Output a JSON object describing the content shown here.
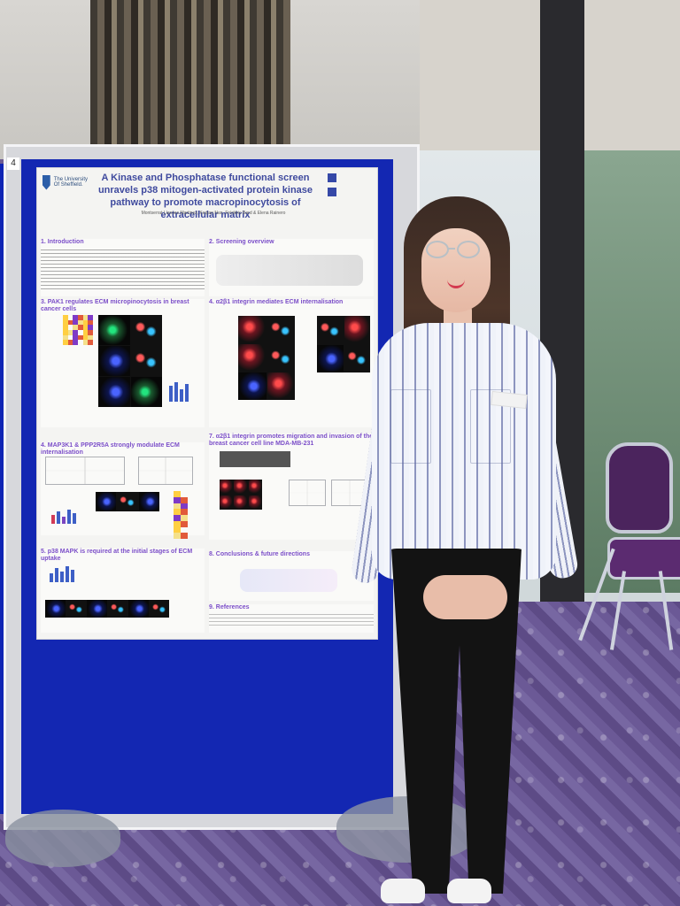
{
  "poster": {
    "board_number": "4",
    "title": "A Kinase and Phosphatase functional screen unravels p38 mitogen-activated protein kinase pathway to promote macropinocytosis of extracellular matrix",
    "university": "The University Of Sheffield.",
    "authors": "Montserrat Llanses Martinez, Keqian Nan, Frédéric Bard & Elena Rainero",
    "sections": {
      "s1": "1. Introduction",
      "s2": "2. Screening overview",
      "s3": "3. PAK1 regulates ECM micropinocytosis in breast cancer cells",
      "s4": "4. α2β1 integrin mediates ECM internalisation",
      "s5": "4. MAP3K1 & PPP2R5A strongly modulate ECM internalisation",
      "s6": "7. α2β1 integrin promotes migration and invasion of the breast cancer cell line MDA-MB-231",
      "s7": "5. p38 MAPK is required at the initial stages of ECM uptake",
      "s8": "8. Conclusions & future directions",
      "s9": "9. References"
    }
  },
  "chart_data": {
    "type": "table",
    "title": "",
    "values": []
  }
}
